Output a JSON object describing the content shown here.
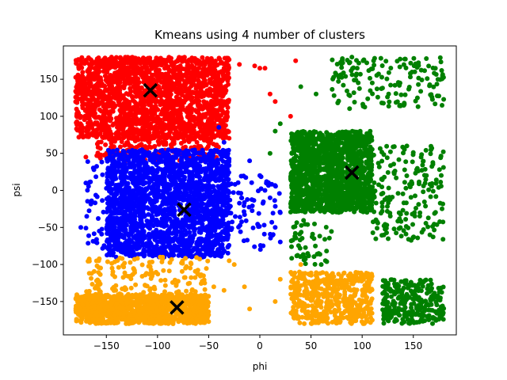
{
  "chart_data": {
    "type": "scatter",
    "title": "Kmeans using 4 number of clusters",
    "xlabel": "phi",
    "ylabel": "psi",
    "xlim": [
      -192,
      192
    ],
    "ylim": [
      -195,
      195
    ],
    "xticks": [
      -150,
      -100,
      -50,
      0,
      50,
      100,
      150
    ],
    "yticks": [
      -150,
      -100,
      -50,
      0,
      50,
      100,
      150
    ],
    "xtick_labels": [
      "−150",
      "−100",
      "−50",
      "0",
      "50",
      "100",
      "150"
    ],
    "ytick_labels": [
      "−150",
      "−100",
      "−50",
      "0",
      "50",
      "100",
      "150"
    ],
    "grid": false,
    "legend": "none",
    "series": [
      {
        "color": "#ff0000",
        "point_count_estimate": 4000,
        "regions": [
          {
            "x_range": [
              -180,
              -30
            ],
            "y_range": [
              70,
              180
            ],
            "density": "dense"
          },
          {
            "x_range": [
              -160,
              -40
            ],
            "y_range": [
              40,
              70
            ],
            "density": "medium"
          }
        ],
        "outliers": [
          [
            -20,
            170
          ],
          [
            -5,
            168
          ],
          [
            0,
            165
          ],
          [
            5,
            165
          ],
          [
            10,
            130
          ],
          [
            15,
            120
          ],
          [
            30,
            100
          ],
          [
            35,
            175
          ],
          [
            -170,
            45
          ],
          [
            -175,
            100
          ],
          [
            -100,
            40
          ]
        ]
      },
      {
        "color": "#0000ff",
        "point_count_estimate": 3500,
        "regions": [
          {
            "x_range": [
              -150,
              -30
            ],
            "y_range": [
              -90,
              55
            ],
            "density": "dense"
          },
          {
            "x_range": [
              -170,
              -150
            ],
            "y_range": [
              -80,
              40
            ],
            "density": "sparse"
          },
          {
            "x_range": [
              -30,
              20
            ],
            "y_range": [
              -80,
              20
            ],
            "density": "sparse"
          }
        ],
        "outliers": [
          [
            -40,
            85
          ],
          [
            -35,
            65
          ],
          [
            -10,
            40
          ],
          [
            0,
            20
          ],
          [
            5,
            0
          ],
          [
            10,
            -10
          ],
          [
            20,
            -30
          ],
          [
            15,
            -50
          ],
          [
            -175,
            -50
          ],
          [
            -170,
            10
          ]
        ]
      },
      {
        "color": "#008000",
        "point_count_estimate": 2500,
        "regions": [
          {
            "x_range": [
              30,
              110
            ],
            "y_range": [
              -30,
              80
            ],
            "density": "dense"
          },
          {
            "x_range": [
              70,
              180
            ],
            "y_range": [
              110,
              180
            ],
            "density": "sparse"
          },
          {
            "x_range": [
              110,
              180
            ],
            "y_range": [
              -70,
              60
            ],
            "density": "sparse"
          },
          {
            "x_range": [
              120,
              180
            ],
            "y_range": [
              -180,
              -120
            ],
            "density": "medium"
          },
          {
            "x_range": [
              30,
              70
            ],
            "y_range": [
              -100,
              -40
            ],
            "density": "sparse"
          }
        ],
        "outliers": [
          [
            10,
            50
          ],
          [
            15,
            80
          ],
          [
            20,
            90
          ],
          [
            40,
            140
          ],
          [
            55,
            130
          ],
          [
            60,
            -100
          ],
          [
            85,
            -130
          ],
          [
            100,
            -150
          ],
          [
            95,
            -120
          ]
        ]
      },
      {
        "color": "#ffa500",
        "point_count_estimate": 1800,
        "regions": [
          {
            "x_range": [
              -180,
              -50
            ],
            "y_range": [
              -180,
              -140
            ],
            "density": "dense"
          },
          {
            "x_range": [
              -170,
              -50
            ],
            "y_range": [
              -140,
              -90
            ],
            "density": "sparse"
          },
          {
            "x_range": [
              30,
              110
            ],
            "y_range": [
              -180,
              -110
            ],
            "density": "medium"
          }
        ],
        "outliers": [
          [
            -45,
            -130
          ],
          [
            -35,
            -135
          ],
          [
            -25,
            -100
          ],
          [
            -30,
            -95
          ],
          [
            -15,
            -130
          ],
          [
            -10,
            -160
          ],
          [
            15,
            -150
          ],
          [
            20,
            -120
          ],
          [
            40,
            -100
          ]
        ]
      }
    ],
    "centroids": {
      "marker": "x",
      "color": "#000000",
      "points": [
        [
          -107,
          135
        ],
        [
          -74,
          -26
        ],
        [
          90,
          24
        ],
        [
          -81,
          -158
        ]
      ]
    }
  }
}
